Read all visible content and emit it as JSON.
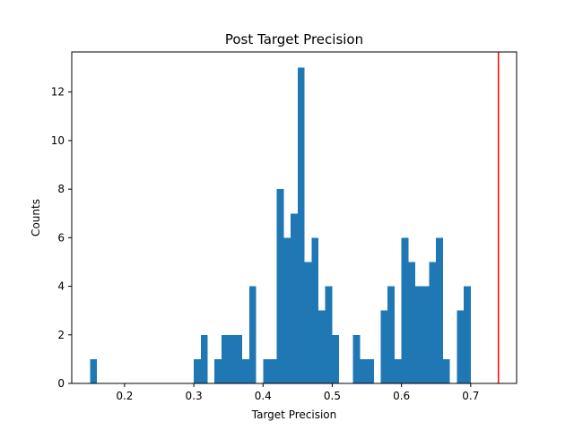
{
  "chart_data": {
    "type": "bar",
    "title": "Post Target Precision",
    "xlabel": "Target Precision",
    "ylabel": "Counts",
    "bin_start": 0.15,
    "bin_width": 0.01,
    "counts": [
      1,
      0,
      0,
      0,
      0,
      0,
      0,
      0,
      0,
      0,
      0,
      0,
      0,
      0,
      0,
      1,
      2,
      0,
      1,
      2,
      2,
      2,
      1,
      4,
      0,
      1,
      1,
      8,
      6,
      7,
      13,
      5,
      6,
      3,
      4,
      2,
      0,
      0,
      2,
      1,
      1,
      0,
      3,
      4,
      1,
      6,
      5,
      4,
      4,
      5,
      6,
      1,
      0,
      3,
      4
    ],
    "xlim": [
      0.1237,
      0.7663
    ],
    "ylim": [
      0,
      13.65
    ],
    "x_ticks": [
      "0.2",
      "0.3",
      "0.4",
      "0.5",
      "0.6",
      "0.7"
    ],
    "y_ticks": [
      "0",
      "2",
      "4",
      "6",
      "8",
      "10",
      "12"
    ],
    "threshold_line": {
      "x": 0.74,
      "color": "#ff0000"
    },
    "bar_color": "#1f77b4",
    "grid": false,
    "legend": "none"
  }
}
